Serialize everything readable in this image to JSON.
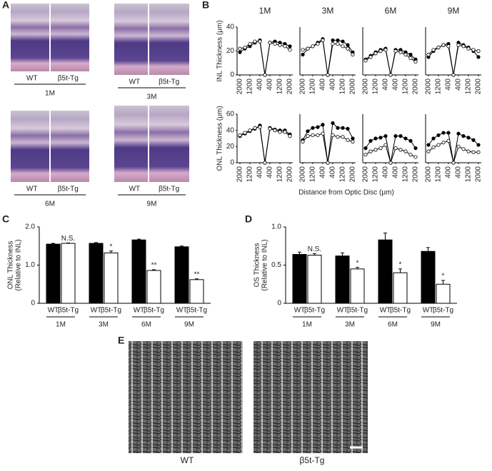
{
  "panels": [
    "A",
    "B",
    "C",
    "D",
    "E"
  ],
  "histology": {
    "genotypes": [
      "WT",
      "β5t-Tg"
    ],
    "ages": [
      "1M",
      "3M",
      "6M",
      "9M"
    ]
  },
  "shared_x_label": "Distance from Optic Disc (μm)",
  "em": {
    "labels": [
      "WT",
      "β5t-Tg"
    ]
  },
  "chart_data": [
    {
      "type": "line",
      "title": "1M",
      "ylabel": "INL Thickness (μm)",
      "categories": [
        "2000",
        null,
        "1200",
        null,
        "400",
        null,
        "400",
        null,
        "1200",
        null,
        "2000"
      ],
      "ylim": [
        0,
        40
      ],
      "yticks": [
        0,
        20,
        40
      ],
      "series": [
        {
          "color": "#000000",
          "values": [
            19,
            22,
            24,
            27,
            29,
            0,
            27,
            28,
            27,
            26,
            24
          ]
        },
        {
          "color": "#ffffff",
          "values": [
            22,
            23,
            26,
            28,
            28,
            0,
            27,
            26,
            25,
            24,
            21
          ]
        }
      ]
    },
    {
      "type": "line",
      "title": "3M",
      "categories": [
        "2000",
        null,
        "1200",
        null,
        "400",
        null,
        "400",
        null,
        "1200",
        null,
        "2000"
      ],
      "ylim": [
        0,
        40
      ],
      "series": [
        {
          "color": "#000000",
          "values": [
            17,
            22,
            24,
            27,
            30,
            0,
            29,
            29,
            28,
            25,
            19
          ]
        },
        {
          "color": "#ffffff",
          "values": [
            21,
            22,
            24,
            26,
            29,
            0,
            26,
            26,
            24,
            22,
            17
          ]
        }
      ]
    },
    {
      "type": "line",
      "title": "6M",
      "categories": [
        "2000",
        null,
        "1200",
        null,
        "400",
        null,
        "400",
        null,
        "1200",
        null,
        "2000"
      ],
      "ylim": [
        0,
        40
      ],
      "series": [
        {
          "color": "#000000",
          "values": [
            13,
            16,
            19,
            21,
            22,
            0,
            21,
            21,
            19,
            17,
            13
          ]
        },
        {
          "color": "#ffffff",
          "values": [
            12,
            15,
            18,
            20,
            21,
            0,
            20,
            19,
            17,
            14,
            11
          ]
        }
      ]
    },
    {
      "type": "line",
      "title": "9M",
      "categories": [
        "2000",
        null,
        "1200",
        null,
        "400",
        null,
        "400",
        null,
        "1200",
        null,
        "2000"
      ],
      "ylim": [
        0,
        40
      ],
      "series": [
        {
          "color": "#000000",
          "values": [
            15,
            20,
            23,
            25,
            26,
            0,
            27,
            25,
            23,
            20,
            15
          ]
        },
        {
          "color": "#ffffff",
          "values": [
            17,
            21,
            23,
            25,
            24,
            0,
            25,
            24,
            22,
            21,
            20
          ]
        }
      ]
    },
    {
      "type": "line",
      "ylabel": "ONL Thickness (μm)",
      "categories": [
        "2000",
        null,
        "1200",
        null,
        "400",
        null,
        "400",
        null,
        "1200",
        null,
        "2000"
      ],
      "ylim": [
        0,
        60
      ],
      "yticks": [
        0,
        20,
        40,
        60
      ],
      "series": [
        {
          "color": "#000000",
          "values": [
            33,
            36,
            39,
            42,
            46,
            0,
            43,
            41,
            40,
            40,
            35
          ]
        },
        {
          "color": "#ffffff",
          "values": [
            34,
            37,
            40,
            43,
            44,
            0,
            42,
            40,
            38,
            38,
            33
          ]
        }
      ]
    },
    {
      "type": "line",
      "categories": [
        "2000",
        null,
        "1200",
        null,
        "400",
        null,
        "400",
        null,
        "1200",
        null,
        "2000"
      ],
      "ylim": [
        0,
        60
      ],
      "series": [
        {
          "color": "#000000",
          "values": [
            28,
            39,
            43,
            44,
            47,
            0,
            49,
            43,
            43,
            42,
            30
          ]
        },
        {
          "color": "#ffffff",
          "values": [
            26,
            33,
            34,
            34,
            36,
            0,
            34,
            32,
            32,
            28,
            26
          ]
        }
      ]
    },
    {
      "type": "line",
      "categories": [
        "2000",
        null,
        "1200",
        null,
        "400",
        null,
        "400",
        null,
        "1200",
        null,
        "2000"
      ],
      "ylim": [
        0,
        60
      ],
      "series": [
        {
          "color": "#000000",
          "values": [
            18,
            27,
            30,
            31,
            33,
            0,
            33,
            33,
            30,
            27,
            18
          ]
        },
        {
          "color": "#ffffff",
          "values": [
            10,
            14,
            16,
            18,
            22,
            0,
            18,
            16,
            14,
            10,
            7
          ]
        }
      ]
    },
    {
      "type": "line",
      "categories": [
        "2000",
        null,
        "1200",
        null,
        "400",
        null,
        "400",
        null,
        "1200",
        null,
        "2000"
      ],
      "ylim": [
        0,
        60
      ],
      "series": [
        {
          "color": "#000000",
          "values": [
            22,
            30,
            34,
            37,
            37,
            0,
            36,
            33,
            31,
            28,
            22
          ]
        },
        {
          "color": "#ffffff",
          "values": [
            14,
            19,
            22,
            25,
            27,
            0,
            20,
            17,
            14,
            13,
            13
          ]
        }
      ]
    },
    {
      "type": "bar",
      "ylabel": [
        "ONL Thickness",
        "(Relative to INL)"
      ],
      "categories": [
        "1M",
        "3M",
        "6M",
        "9M"
      ],
      "ylim": [
        0,
        2
      ],
      "yticks": [
        0,
        {
          "value": 1,
          "label": "1.0"
        },
        {
          "value": 2,
          "label": "2.0"
        }
      ],
      "series": [
        {
          "name": "WT",
          "color": "#000000",
          "values": [
            1.55,
            1.57,
            1.66,
            1.48
          ],
          "errors": [
            0.02,
            0.02,
            0.02,
            0.02
          ]
        },
        {
          "name": "β5t-Tg",
          "color": "#ffffff",
          "values": [
            1.57,
            1.32,
            0.86,
            0.62
          ],
          "errors": [
            0.01,
            0.05,
            0.02,
            0.02
          ]
        }
      ],
      "annotations": [
        "N.S.",
        "*",
        "**",
        "**"
      ]
    },
    {
      "type": "bar",
      "ylabel": [
        "OS Thickness",
        "(Relative to INL)"
      ],
      "categories": [
        "1M",
        "3M",
        "6M",
        "9M"
      ],
      "ylim": [
        0,
        1
      ],
      "yticks": [
        0,
        0.5,
        {
          "value": 1,
          "label": "1.0"
        }
      ],
      "series": [
        {
          "name": "WT",
          "color": "#000000",
          "values": [
            0.64,
            0.62,
            0.83,
            0.68
          ],
          "errors": [
            0.03,
            0.04,
            0.09,
            0.05
          ]
        },
        {
          "name": "β5t-Tg",
          "color": "#ffffff",
          "values": [
            0.63,
            0.45,
            0.4,
            0.25
          ],
          "errors": [
            0.02,
            0.02,
            0.05,
            0.05
          ]
        }
      ],
      "annotations": [
        "N.S.",
        "*",
        "*",
        "*"
      ]
    }
  ]
}
